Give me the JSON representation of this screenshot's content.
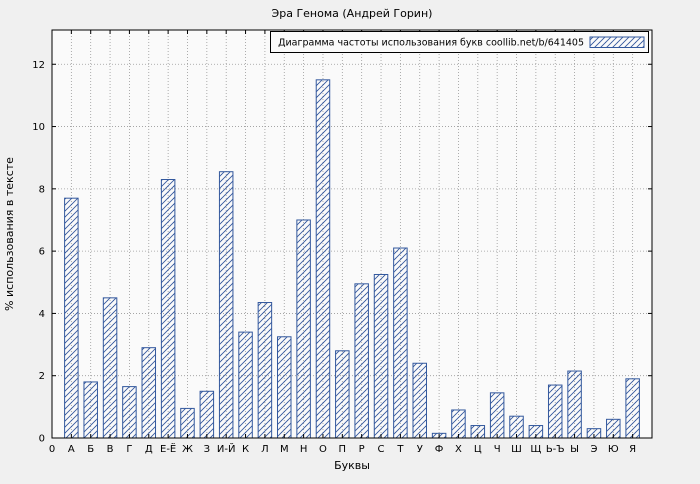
{
  "chart_data": {
    "type": "bar",
    "title": "Эра Генома (Андрей Горин)",
    "legend": "Диаграмма частоты использования букв coollib.net/b/641405",
    "legend_position": "top-right",
    "xlabel": "Буквы",
    "ylabel": "% использования в тексте",
    "origin_tick_label": "0",
    "categories": [
      "А",
      "Б",
      "В",
      "Г",
      "Д",
      "Е-Ё",
      "Ж",
      "З",
      "И-Й",
      "К",
      "Л",
      "М",
      "Н",
      "О",
      "П",
      "Р",
      "С",
      "Т",
      "У",
      "Ф",
      "Х",
      "Ц",
      "Ч",
      "Ш",
      "Щ",
      "Ь-Ъ",
      "Ы",
      "Э",
      "Ю",
      "Я"
    ],
    "values": [
      7.7,
      1.8,
      4.5,
      1.65,
      2.9,
      8.3,
      0.95,
      1.5,
      8.55,
      3.4,
      4.35,
      3.25,
      7.0,
      11.5,
      2.8,
      4.95,
      5.25,
      6.1,
      2.4,
      0.15,
      0.9,
      0.4,
      1.45,
      0.7,
      0.4,
      1.7,
      2.15,
      0.3,
      0.6,
      1.9
    ],
    "yticks": [
      0,
      2,
      4,
      6,
      8,
      10,
      12
    ],
    "ylim": [
      0,
      13.1
    ],
    "grid": "dotted",
    "bar_style": "diagonal-hatch",
    "colors": {
      "bar": "#33589d",
      "figure_bg": "#f0f0f0",
      "plot_bg": "#fafafa",
      "grid": "#999999",
      "axis": "#000000"
    }
  }
}
